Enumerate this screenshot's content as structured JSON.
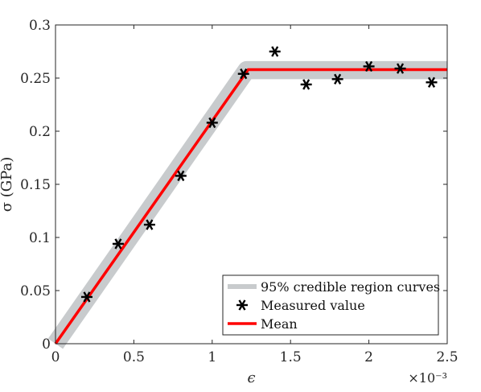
{
  "chart_data": {
    "type": "line",
    "xlabel": "ϵ",
    "ylabel": "σ (GPa)",
    "x_exponent_label": "×10⁻³",
    "xlim": [
      0,
      2.5
    ],
    "ylim": [
      0,
      0.3
    ],
    "xticks": [
      0,
      0.5,
      1,
      1.5,
      2,
      2.5
    ],
    "xtick_labels": [
      "0",
      "0.5",
      "1",
      "1.5",
      "2",
      "2.5"
    ],
    "yticks": [
      0,
      0.05,
      0.1,
      0.15,
      0.2,
      0.25,
      0.3
    ],
    "ytick_labels": [
      "0",
      "0.05",
      "0.1",
      "0.15",
      "0.2",
      "0.25",
      "0.3"
    ],
    "grid": false,
    "legend_position": "bottom-right",
    "series": [
      {
        "name": "95% credible region curves",
        "style": "band",
        "color": "#c8cbcd",
        "x": [
          0,
          1.22,
          2.5
        ],
        "y_lower": [
          0,
          0.249,
          0.249
        ],
        "y_upper": [
          0,
          0.266,
          0.266
        ]
      },
      {
        "name": "Measured value",
        "style": "markers",
        "marker": "asterisk",
        "color": "#000000",
        "x": [
          0.2,
          0.4,
          0.6,
          0.8,
          1.0,
          1.2,
          1.4,
          1.6,
          1.8,
          2.0,
          2.2,
          2.4
        ],
        "y": [
          0.044,
          0.094,
          0.112,
          0.158,
          0.208,
          0.254,
          0.275,
          0.244,
          0.249,
          0.261,
          0.259,
          0.246
        ]
      },
      {
        "name": "Mean",
        "style": "line",
        "color": "#ff0000",
        "x": [
          0,
          1.23,
          2.5
        ],
        "y": [
          0,
          0.258,
          0.258
        ]
      }
    ]
  }
}
